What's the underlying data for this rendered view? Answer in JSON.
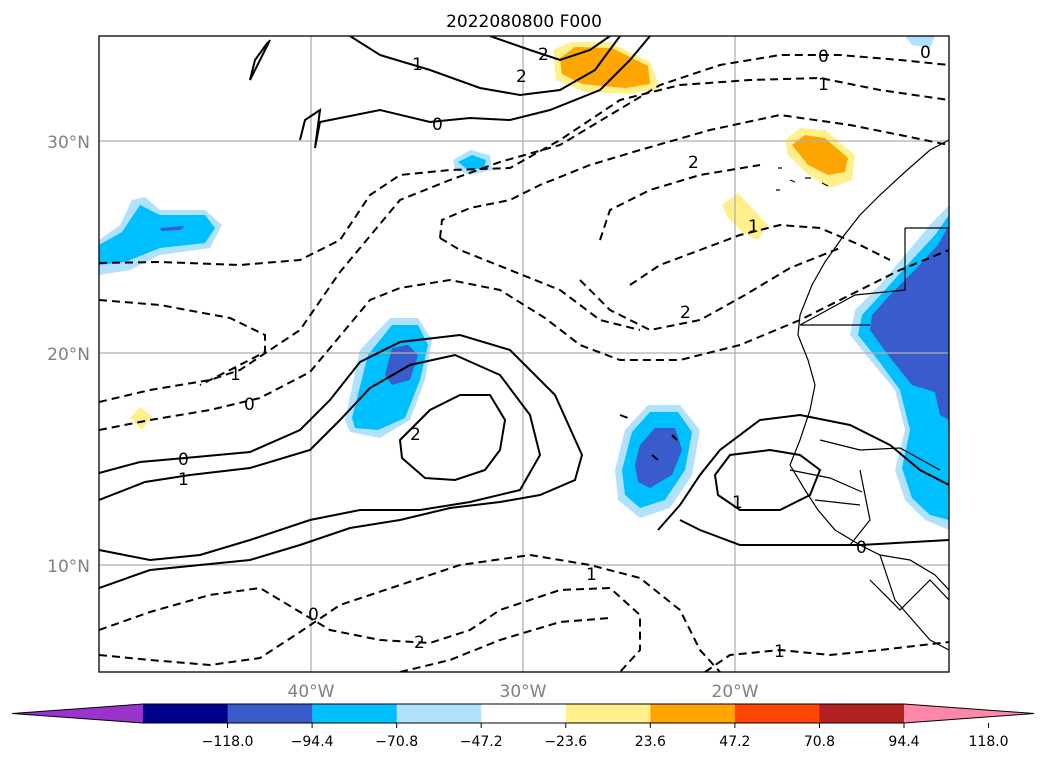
{
  "title": "2022080800 F000",
  "map": {
    "lat_labels": [
      "30°N",
      "20°N",
      "10°N"
    ],
    "lon_labels": [
      "40°W",
      "30°W",
      "20°W"
    ],
    "extent": {
      "lon": [
        -50,
        -10
      ],
      "lat": [
        5,
        35
      ]
    },
    "gridlines": true
  },
  "colorbar": {
    "extend": "both",
    "ticks": [
      "−118.0",
      "−94.4",
      "−70.8",
      "−47.2",
      "−23.6",
      "23.6",
      "47.2",
      "70.8",
      "94.4",
      "118.0"
    ],
    "colors": [
      "#9933cc",
      "#00008b",
      "#3a5bcb",
      "#00bfff",
      "#b0e2ff",
      "#ffffff",
      "#fff08c",
      "#ffa500",
      "#ff4500",
      "#b22222",
      "#ff88aa"
    ]
  },
  "contour_labels": {
    "solid": [
      "2",
      "1",
      "0",
      "0",
      "1",
      "2",
      "1",
      "0"
    ],
    "dashed": [
      "0",
      "1",
      "2",
      "2",
      "1",
      "0",
      "2",
      "1",
      "0",
      "1",
      "2",
      "1",
      "0"
    ]
  }
}
